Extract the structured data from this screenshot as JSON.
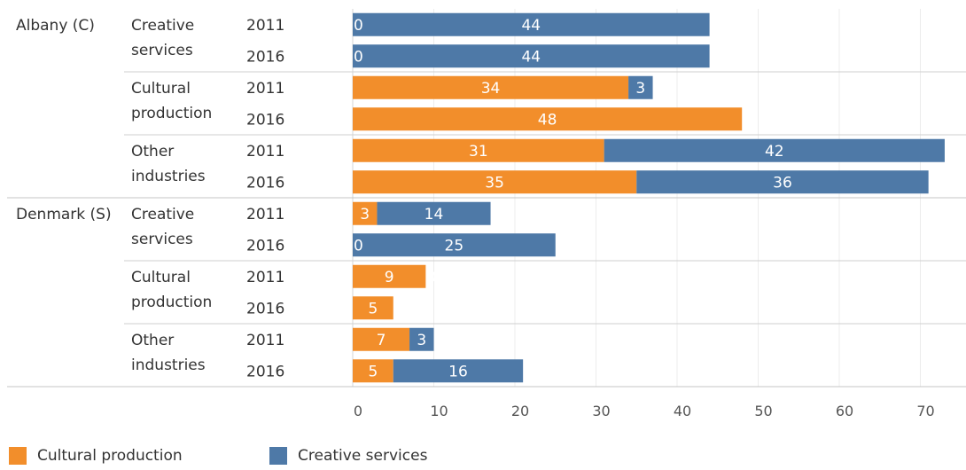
{
  "chart_data": {
    "type": "bar",
    "orientation": "horizontal",
    "stacked": true,
    "groups": [
      {
        "region": "Albany (C)",
        "industries": [
          {
            "name": "Creative\nservices",
            "rows": [
              {
                "year": "2011",
                "cultural": 0,
                "creative": 44
              },
              {
                "year": "2016",
                "cultural": 0,
                "creative": 44
              }
            ]
          },
          {
            "name": "Cultural\nproduction",
            "rows": [
              {
                "year": "2011",
                "cultural": 34,
                "creative": 3
              },
              {
                "year": "2016",
                "cultural": 48,
                "creative": 0
              }
            ]
          },
          {
            "name": "Other\nindustries",
            "rows": [
              {
                "year": "2011",
                "cultural": 31,
                "creative": 42
              },
              {
                "year": "2016",
                "cultural": 35,
                "creative": 36
              }
            ]
          }
        ]
      },
      {
        "region": "Denmark (S)",
        "industries": [
          {
            "name": "Creative\nservices",
            "rows": [
              {
                "year": "2011",
                "cultural": 3,
                "creative": 14
              },
              {
                "year": "2016",
                "cultural": 0,
                "creative": 25
              }
            ]
          },
          {
            "name": "Cultural\nproduction",
            "rows": [
              {
                "year": "2011",
                "cultural": 9,
                "creative": 0
              },
              {
                "year": "2016",
                "cultural": 5,
                "creative": 0
              }
            ]
          },
          {
            "name": "Other\nindustries",
            "rows": [
              {
                "year": "2011",
                "cultural": 7,
                "creative": 3
              },
              {
                "year": "2016",
                "cultural": 5,
                "creative": 16
              }
            ]
          }
        ]
      }
    ],
    "series": [
      {
        "key": "cultural",
        "name": "Cultural production",
        "color": "#F28E2B"
      },
      {
        "key": "creative",
        "name": "Creative services",
        "color": "#4E79A7"
      }
    ],
    "x_ticks": [
      0,
      10,
      20,
      30,
      40,
      50,
      60,
      70
    ],
    "xlim": [
      0,
      75
    ],
    "grid": true,
    "legend_position": "bottom-left"
  },
  "legend": {
    "items": [
      {
        "label": "Cultural production",
        "color": "#F28E2B"
      },
      {
        "label": "Creative services",
        "color": "#4E79A7"
      }
    ]
  }
}
